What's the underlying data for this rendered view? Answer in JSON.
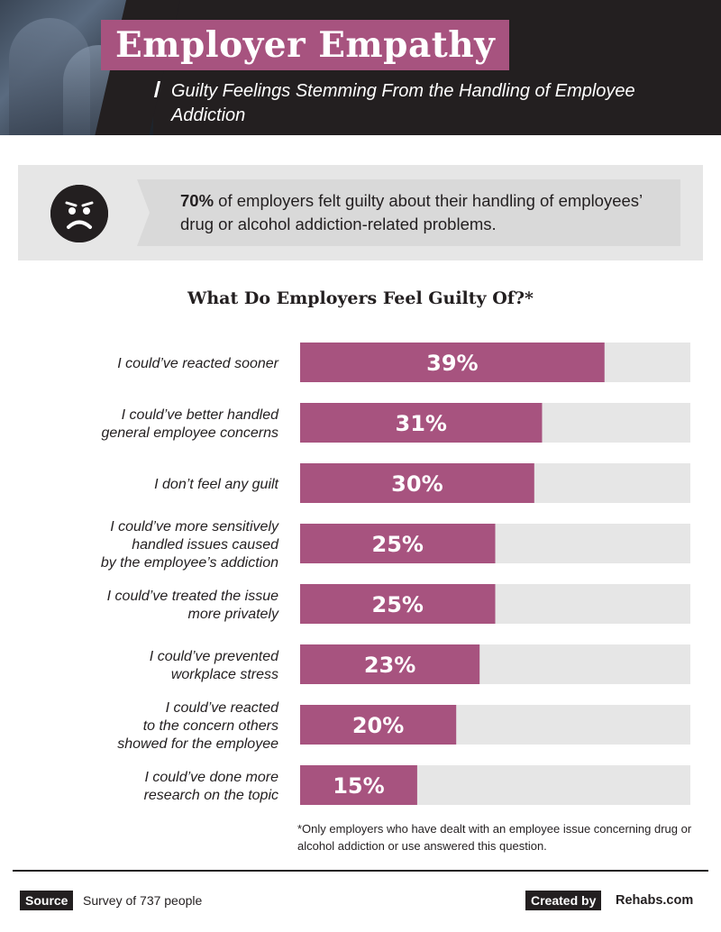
{
  "header": {
    "title": "Employer Empathy",
    "subtitle": "Guilty Feelings Stemming From the Handling of Employee Addiction"
  },
  "stat": {
    "highlight": "70%",
    "text": " of employers felt guilty about their handling of employees’ drug or alcohol addiction-related problems.",
    "icon": "sad-face-icon"
  },
  "chart_data": {
    "type": "bar",
    "orientation": "horizontal",
    "title": "What Do Employers Feel Guilty Of?*",
    "categories": [
      [
        "I could’ve reacted sooner"
      ],
      [
        "I could’ve better handled",
        "general employee concerns"
      ],
      [
        "I don’t feel any guilt"
      ],
      [
        "I could’ve more sensitively",
        "handled issues caused",
        "by the employee’s addiction"
      ],
      [
        "I could’ve treated the issue",
        "more privately"
      ],
      [
        "I could’ve prevented",
        "workplace stress"
      ],
      [
        "I could’ve reacted",
        "to the concern others",
        "showed for the employee"
      ],
      [
        "I could’ve done more",
        "research on the topic"
      ]
    ],
    "values": [
      39,
      31,
      30,
      25,
      25,
      23,
      20,
      15
    ],
    "value_labels": [
      "39%",
      "31%",
      "30%",
      "25%",
      "25%",
      "23%",
      "20%",
      "15%"
    ],
    "xlim": [
      0,
      50
    ],
    "bar_color": "#a7537f",
    "track_color": "#e6e6e6"
  },
  "footnote": "*Only employers who have dealt with an employee issue concerning drug or alcohol addiction or use answered this question.",
  "footer": {
    "source_label": "Source",
    "source_text": "Survey of 737 people",
    "created_by_label": "Created by",
    "brand": "Rehabs.com"
  },
  "colors": {
    "accent": "#a7537f",
    "dark": "#231f20",
    "light_gray": "#e6e6e6"
  }
}
